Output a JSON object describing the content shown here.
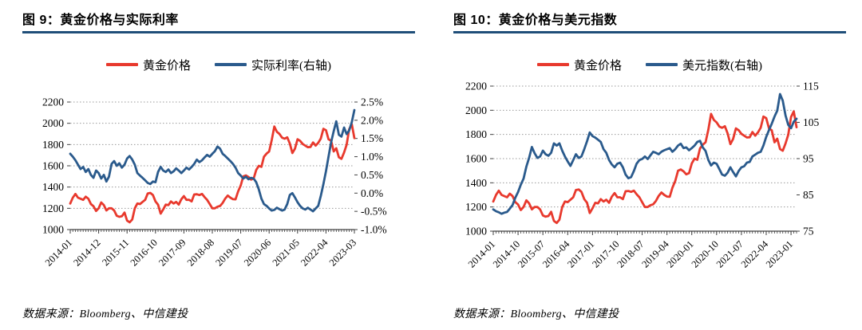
{
  "page": {
    "background": "#ffffff",
    "accent_rule_color": "#1F4E79"
  },
  "chart_data": [
    {
      "type": "line",
      "title": "图 9：黄金价格与实际利率",
      "source": "数据来源：Bloomberg、中信建投",
      "legend_position": "top",
      "grid": "dotted-horizontal",
      "x_monthly_start": "2014-01",
      "x_monthly_end": "2023-03",
      "x_tick_every": 11,
      "x_tick_labels": [
        "2014-01",
        "2014-12",
        "2015-11",
        "2016-10",
        "2017-09",
        "2018-08",
        "2019-07",
        "2020-06",
        "2021-05",
        "2022-04",
        "2023-03"
      ],
      "left_axis": {
        "ticks": [
          2200,
          2000,
          1800,
          1600,
          1400,
          1200,
          1000
        ],
        "range": [
          1000,
          2200
        ]
      },
      "right_axis": {
        "tick_labels": [
          "2.5%",
          "2.0%",
          "1.5%",
          "1.0%",
          "0.5%",
          "0.0%",
          "-0.5%",
          "-1.0%"
        ],
        "range": [
          -1.0,
          2.5
        ]
      },
      "series": [
        {
          "name": "黄金价格",
          "axis": "left",
          "color": "#E8392D",
          "values": [
            1245,
            1300,
            1335,
            1300,
            1290,
            1280,
            1310,
            1290,
            1240,
            1220,
            1175,
            1200,
            1255,
            1230,
            1180,
            1200,
            1200,
            1180,
            1130,
            1120,
            1125,
            1160,
            1085,
            1068,
            1095,
            1200,
            1245,
            1240,
            1260,
            1280,
            1340,
            1345,
            1325,
            1265,
            1235,
            1150,
            1190,
            1235,
            1230,
            1265,
            1245,
            1260,
            1235,
            1285,
            1315,
            1280,
            1280,
            1265,
            1330,
            1332,
            1325,
            1335,
            1305,
            1280,
            1240,
            1200,
            1200,
            1215,
            1222,
            1250,
            1292,
            1320,
            1300,
            1286,
            1284,
            1360,
            1415,
            1500,
            1510,
            1495,
            1470,
            1480,
            1560,
            1600,
            1590,
            1685,
            1715,
            1735,
            1840,
            1970,
            1920,
            1900,
            1865,
            1855,
            1868,
            1810,
            1720,
            1762,
            1850,
            1835,
            1805,
            1790,
            1775,
            1777,
            1820,
            1790,
            1816,
            1856,
            1948,
            1935,
            1850,
            1835,
            1735,
            1765,
            1680,
            1665,
            1725,
            1798,
            1945,
            1990,
            1860
          ]
        },
        {
          "name": "实际利率(右轴)",
          "axis": "right",
          "color": "#2A5A8C",
          "values": [
            1.08,
            1.0,
            0.9,
            0.78,
            0.66,
            0.72,
            0.58,
            0.66,
            0.5,
            0.42,
            0.62,
            0.55,
            0.4,
            0.5,
            0.32,
            0.45,
            0.8,
            0.88,
            0.75,
            0.82,
            0.7,
            0.78,
            0.95,
            1.02,
            0.92,
            0.78,
            0.55,
            0.48,
            0.42,
            0.35,
            0.28,
            0.25,
            0.32,
            0.3,
            0.58,
            0.72,
            0.62,
            0.58,
            0.65,
            0.55,
            0.6,
            0.68,
            0.62,
            0.55,
            0.62,
            0.7,
            0.65,
            0.72,
            0.8,
            0.92,
            0.85,
            0.9,
            0.98,
            1.05,
            1.0,
            1.08,
            1.15,
            1.28,
            1.22,
            1.08,
            1.02,
            0.95,
            0.88,
            0.8,
            0.7,
            0.55,
            0.48,
            0.4,
            0.45,
            0.38,
            0.42,
            0.4,
            0.3,
            0.1,
            -0.15,
            -0.3,
            -0.35,
            -0.42,
            -0.48,
            -0.46,
            -0.4,
            -0.44,
            -0.48,
            -0.45,
            -0.3,
            -0.05,
            0.0,
            -0.12,
            -0.25,
            -0.35,
            -0.42,
            -0.45,
            -0.4,
            -0.45,
            -0.5,
            -0.42,
            -0.35,
            -0.08,
            0.25,
            0.6,
            1.0,
            1.4,
            1.7,
            1.97,
            1.6,
            1.55,
            1.8,
            1.62,
            1.72,
            1.95,
            2.28
          ]
        }
      ]
    },
    {
      "type": "line",
      "title": "图 10：黄金价格与美元指数",
      "source": "数据来源：Bloomberg、中信建投",
      "legend_position": "top",
      "grid": "dotted-horizontal",
      "x_monthly_start": "2014-01",
      "x_monthly_end": "2023-03",
      "x_tick_every": 9,
      "x_tick_labels": [
        "2014-01",
        "2014-10",
        "2015-07",
        "2016-04",
        "2017-01",
        "2017-10",
        "2018-07",
        "2019-04",
        "2020-01",
        "2020-10",
        "2021-07",
        "2022-04",
        "2023-01"
      ],
      "left_axis": {
        "ticks": [
          2200,
          2000,
          1800,
          1600,
          1400,
          1200,
          1000
        ],
        "range": [
          1000,
          2200
        ]
      },
      "right_axis": {
        "tick_labels": [
          "115",
          "105",
          "95",
          "85",
          "75"
        ],
        "range": [
          75,
          115
        ]
      },
      "series": [
        {
          "name": "黄金价格",
          "axis": "left",
          "color": "#E8392D",
          "values": [
            1245,
            1300,
            1335,
            1300,
            1290,
            1280,
            1310,
            1290,
            1240,
            1220,
            1175,
            1200,
            1255,
            1230,
            1180,
            1200,
            1200,
            1180,
            1130,
            1120,
            1125,
            1160,
            1085,
            1068,
            1095,
            1200,
            1245,
            1240,
            1260,
            1280,
            1340,
            1345,
            1325,
            1265,
            1235,
            1150,
            1190,
            1235,
            1230,
            1265,
            1245,
            1260,
            1235,
            1285,
            1315,
            1280,
            1280,
            1265,
            1330,
            1332,
            1325,
            1335,
            1305,
            1280,
            1240,
            1200,
            1200,
            1215,
            1222,
            1250,
            1292,
            1320,
            1300,
            1286,
            1284,
            1360,
            1415,
            1500,
            1510,
            1495,
            1470,
            1480,
            1560,
            1600,
            1590,
            1685,
            1715,
            1735,
            1840,
            1970,
            1920,
            1900,
            1865,
            1855,
            1868,
            1810,
            1720,
            1762,
            1850,
            1835,
            1805,
            1790,
            1775,
            1777,
            1820,
            1790,
            1816,
            1856,
            1948,
            1935,
            1850,
            1835,
            1735,
            1765,
            1680,
            1665,
            1725,
            1798,
            1945,
            1990,
            1860
          ]
        },
        {
          "name": "美元指数(右轴)",
          "axis": "right",
          "color": "#2A5A8C",
          "values": [
            81.0,
            80.5,
            80.2,
            79.8,
            80.1,
            80.3,
            81.2,
            82.2,
            84.2,
            85.8,
            87.8,
            89.5,
            92.8,
            95.2,
            98.2,
            96.5,
            95.2,
            95.6,
            97.2,
            96.2,
            95.8,
            96.6,
            99.2,
            98.6,
            99.2,
            97.2,
            95.6,
            94.2,
            93.0,
            94.6,
            96.2,
            95.2,
            95.6,
            97.6,
            99.8,
            102.2,
            101.2,
            100.8,
            100.2,
            99.6,
            97.6,
            96.6,
            94.6,
            93.4,
            92.6,
            93.6,
            93.9,
            92.6,
            90.6,
            89.6,
            89.9,
            91.6,
            93.6,
            94.6,
            94.9,
            95.6,
            94.9,
            95.9,
            96.9,
            96.6,
            96.2,
            96.9,
            97.3,
            97.6,
            97.9,
            96.9,
            97.6,
            98.6,
            99.1,
            97.9,
            98.1,
            97.3,
            97.9,
            98.6,
            99.6,
            99.9,
            98.1,
            97.1,
            94.6,
            93.1,
            93.9,
            93.6,
            92.1,
            90.6,
            90.3,
            91.1,
            92.6,
            91.3,
            90.1,
            91.6,
            92.6,
            92.9,
            93.9,
            94.1,
            95.6,
            96.1,
            96.6,
            96.9,
            98.6,
            101.0,
            102.9,
            104.6,
            106.6,
            108.2,
            112.8,
            111.0,
            106.9,
            104.3,
            103.4,
            105.2,
            106.0
          ]
        }
      ]
    }
  ]
}
